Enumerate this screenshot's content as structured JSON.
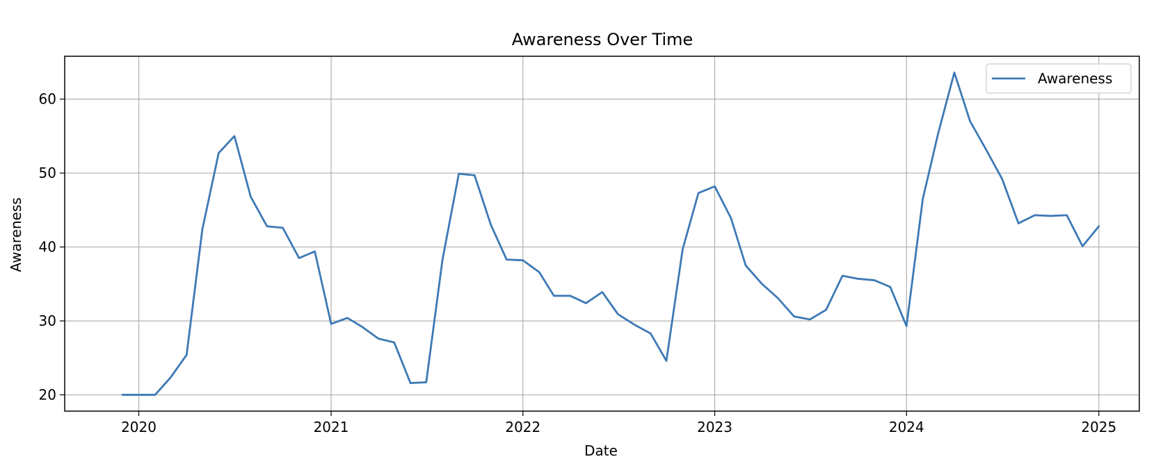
{
  "chart_data": {
    "type": "line",
    "title": "Awareness Over Time",
    "xlabel": "Date",
    "ylabel": "Awareness",
    "x_ticks": [
      "2020",
      "2021",
      "2022",
      "2023",
      "2024",
      "2025"
    ],
    "y_ticks": [
      20,
      30,
      40,
      50,
      60
    ],
    "ylim": [
      17.8,
      65.8
    ],
    "xlim": [
      "2019-08-13",
      "2025-03-19"
    ],
    "grid": true,
    "legend_position": "top-right",
    "colors": {
      "line": "#3d79b5",
      "grid": "#b0b0b0",
      "frame": "#000000"
    },
    "series": [
      {
        "name": "Awareness",
        "x": [
          "2019-12-01",
          "2020-01-01",
          "2020-02-01",
          "2020-03-01",
          "2020-04-01",
          "2020-05-01",
          "2020-06-01",
          "2020-07-01",
          "2020-08-01",
          "2020-09-01",
          "2020-10-01",
          "2020-11-01",
          "2020-12-01",
          "2021-01-01",
          "2021-02-01",
          "2021-03-01",
          "2021-04-01",
          "2021-05-01",
          "2021-06-01",
          "2021-07-01",
          "2021-08-01",
          "2021-09-01",
          "2021-10-01",
          "2021-11-01",
          "2021-12-01",
          "2022-01-01",
          "2022-02-01",
          "2022-03-01",
          "2022-04-01",
          "2022-05-01",
          "2022-06-01",
          "2022-07-01",
          "2022-08-01",
          "2022-09-01",
          "2022-10-01",
          "2022-11-01",
          "2022-12-01",
          "2023-01-01",
          "2023-02-01",
          "2023-03-01",
          "2023-04-01",
          "2023-05-01",
          "2023-06-01",
          "2023-07-01",
          "2023-08-01",
          "2023-09-01",
          "2023-10-01",
          "2023-11-01",
          "2023-12-01",
          "2024-01-01",
          "2024-02-01",
          "2024-03-01",
          "2024-04-01",
          "2024-05-01",
          "2024-06-01",
          "2024-07-01",
          "2024-08-01",
          "2024-09-01",
          "2024-10-01",
          "2024-11-01",
          "2024-12-01",
          "2025-01-01"
        ],
        "values": [
          20.0,
          20.0,
          20.0,
          22.3,
          25.4,
          42.4,
          52.7,
          55.0,
          46.8,
          42.8,
          42.6,
          38.5,
          39.4,
          29.6,
          30.4,
          29.2,
          27.6,
          27.1,
          21.6,
          21.7,
          38.3,
          49.9,
          49.7,
          43.0,
          38.3,
          38.2,
          36.6,
          33.4,
          33.4,
          32.4,
          33.9,
          30.9,
          29.5,
          28.3,
          24.6,
          39.7,
          47.3,
          48.2,
          43.9,
          37.5,
          35.0,
          33.1,
          30.6,
          30.2,
          31.5,
          36.1,
          35.7,
          35.5,
          34.6,
          29.3,
          46.5,
          55.3,
          63.6,
          57.0,
          53.1,
          49.2,
          43.2,
          44.3,
          44.2,
          44.3,
          40.1,
          42.8
        ]
      }
    ]
  }
}
